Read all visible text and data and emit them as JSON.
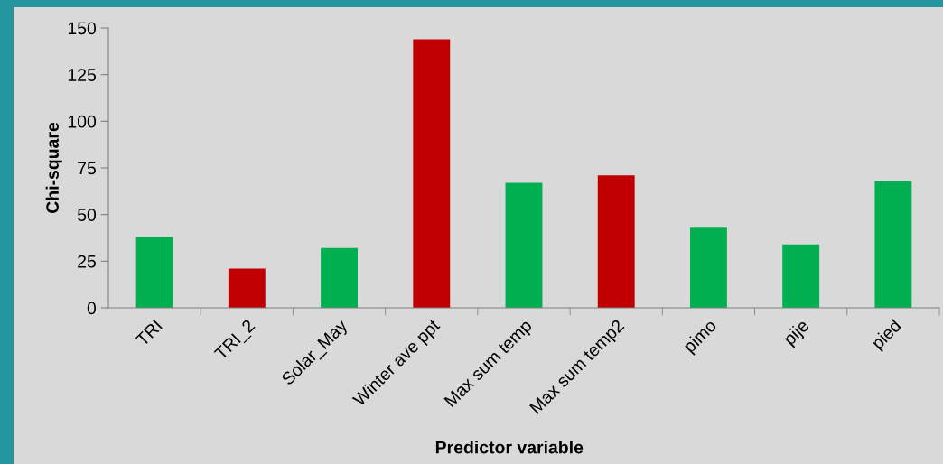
{
  "chart_data": {
    "type": "bar",
    "xlabel": "Predictor variable",
    "ylabel": "Chi-square",
    "categories": [
      "TRI",
      "TRI_2",
      "Solar_May",
      "Winter ave ppt",
      "Max sum temp",
      "Max sum temp2",
      "pimo",
      "pije",
      "pied"
    ],
    "values": [
      38,
      21,
      32,
      144,
      67,
      71,
      43,
      34,
      68
    ],
    "colors": [
      "#00b050",
      "#c00000",
      "#00b050",
      "#c00000",
      "#00b050",
      "#c00000",
      "#00b050",
      "#00b050",
      "#00b050"
    ],
    "ylim": [
      0,
      150
    ],
    "yticks": [
      0,
      25,
      50,
      75,
      100,
      125,
      150
    ],
    "grid": false,
    "legend": false
  }
}
